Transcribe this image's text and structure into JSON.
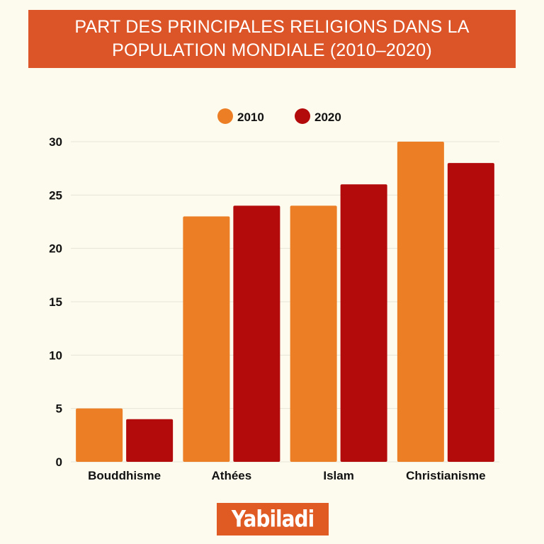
{
  "title": {
    "line1": "PART DES PRINCIPALES RELIGIONS DANS LA",
    "line2": "POPULATION MONDIALE (2010–2020)"
  },
  "brand": {
    "logo_text": "Yabiladi"
  },
  "chart_data": {
    "type": "bar",
    "title": "PART DES PRINCIPALES RELIGIONS DANS LA POPULATION MONDIALE (2010–2020)",
    "xlabel": "",
    "ylabel": "",
    "categories": [
      "Bouddhisme",
      "Athées",
      "Islam",
      "Christianisme"
    ],
    "series": [
      {
        "name": "2010",
        "color": "#ec7f26",
        "values": [
          5,
          23,
          24,
          30
        ]
      },
      {
        "name": "2020",
        "color": "#b30b0b",
        "values": [
          4,
          24,
          26,
          28
        ]
      }
    ],
    "ylim": [
      0,
      30
    ],
    "yticks": [
      "0",
      "5",
      "10",
      "15",
      "20",
      "25",
      "30"
    ],
    "grid": true,
    "legend": "top-center"
  }
}
